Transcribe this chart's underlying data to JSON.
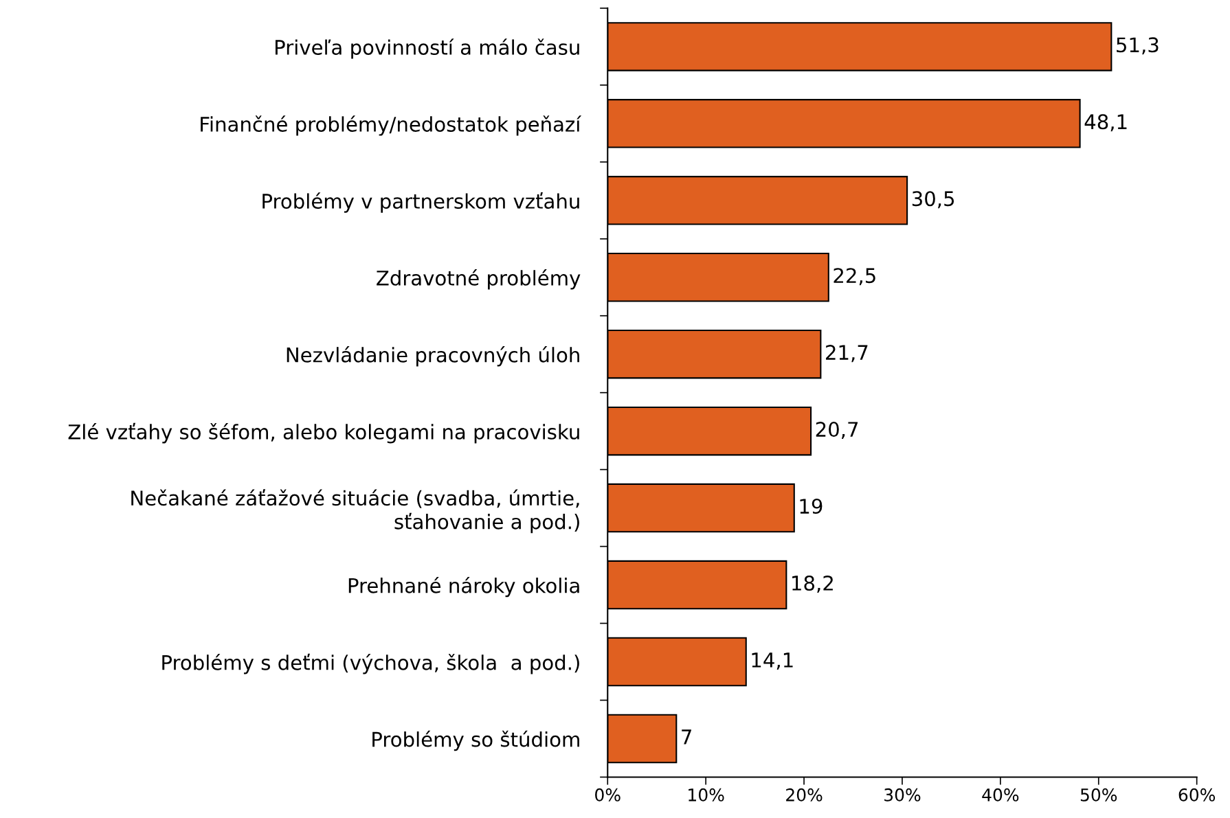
{
  "chart_data": {
    "type": "bar",
    "orientation": "horizontal",
    "categories": [
      "Priveľa povinností a málo času",
      "Finančné problémy/nedostatok peňazí",
      "Problémy v partnerskom vzťahu",
      "Zdravotné problémy",
      "Nezvládanie pracovných úloh",
      "Zlé vzťahy so šéfom, alebo kolegami na pracovisku",
      "Nečakané záťažové situácie (svadba, úmrtie,\nsťahovanie a pod.)",
      "Prehnané nároky okolia",
      "Problémy s deťmi (výchova, škola  a pod.)",
      "Problémy so štúdiom"
    ],
    "values": [
      51.3,
      48.1,
      30.5,
      22.5,
      21.7,
      20.7,
      19,
      18.2,
      14.1,
      7
    ],
    "value_labels": [
      "51,3",
      "48,1",
      "30,5",
      "22,5",
      "21,7",
      "20,7",
      "19",
      "18,2",
      "14,1",
      "7"
    ],
    "color": "#e06020",
    "xlim": [
      0,
      60
    ],
    "xticks": [
      {
        "value": 0,
        "label": "0%"
      },
      {
        "value": 10,
        "label": "10%"
      },
      {
        "value": 20,
        "label": "20%"
      },
      {
        "value": 30,
        "label": "30%"
      },
      {
        "value": 40,
        "label": "40%"
      },
      {
        "value": 50,
        "label": "50%"
      },
      {
        "value": 60,
        "label": "60%"
      }
    ],
    "grid": false,
    "legend": false
  }
}
